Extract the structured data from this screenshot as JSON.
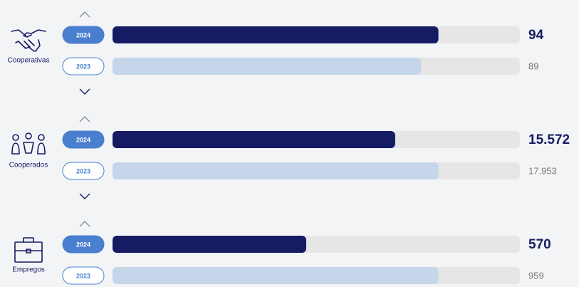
{
  "chart_data": [
    {
      "type": "bar",
      "title": "Cooperativas",
      "series": [
        {
          "name": "2024",
          "color": "#161c64",
          "values": [
            94
          ]
        },
        {
          "name": "2023",
          "color": "#c5d5ea",
          "values": [
            89
          ]
        }
      ]
    },
    {
      "type": "bar",
      "title": "Cooperados",
      "series": [
        {
          "name": "2024",
          "color": "#161c64",
          "values": [
            15572
          ],
          "value_labels": [
            "15.572"
          ]
        },
        {
          "name": "2023",
          "color": "#c5d5ea",
          "values": [
            17953
          ],
          "value_labels": [
            "17.953"
          ]
        }
      ]
    },
    {
      "type": "bar",
      "title": "Empregos",
      "series": [
        {
          "name": "2024",
          "color": "#161c64",
          "values": [
            570
          ]
        },
        {
          "name": "2023",
          "color": "#c5d5ea",
          "values": [
            959
          ]
        }
      ]
    }
  ]
}
